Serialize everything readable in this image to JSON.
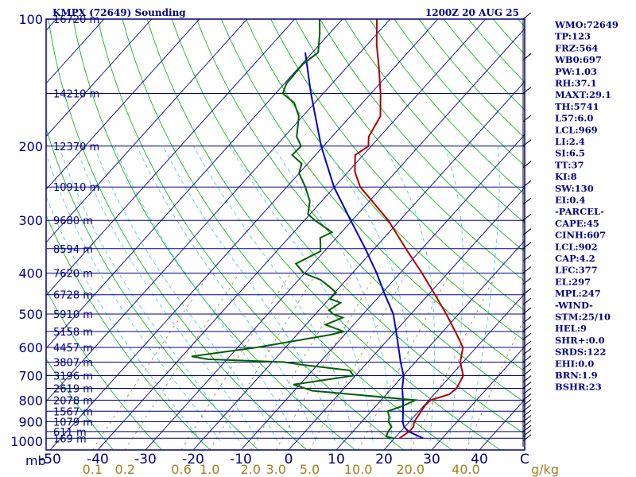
{
  "chart_data": {
    "type": "skew-t sounding",
    "title": "KMPX (72649) Sounding",
    "valid_time": "1200Z 20 AUG 25",
    "pressure_levels": [
      100,
      200,
      300,
      400,
      500,
      600,
      700,
      800,
      900,
      1000
    ],
    "pressure_unit_label": "mb",
    "temperature_ticks": [
      -50,
      -40,
      -30,
      -20,
      -10,
      0,
      10,
      20,
      30,
      40
    ],
    "temperature_unit_label": "C",
    "mixing_ratio_labels": [
      "0.1",
      "0.2",
      "0.6",
      "1.0",
      "2.0",
      "3.0",
      "5.0",
      "10.0",
      "20.0",
      "40.0"
    ],
    "mixing_ratio_unit_label": "g/kg",
    "heights": [
      {
        "p": 100,
        "label": "16720 m"
      },
      {
        "p": 150,
        "label": "14210 m"
      },
      {
        "p": 200,
        "label": "12370 m"
      },
      {
        "p": 250,
        "label": "10910 m"
      },
      {
        "p": 300,
        "label": "9680 m"
      },
      {
        "p": 350,
        "label": "8594 m"
      },
      {
        "p": 400,
        "label": "7620 m"
      },
      {
        "p": 450,
        "label": "6728 m"
      },
      {
        "p": 500,
        "label": "5910 m"
      },
      {
        "p": 550,
        "label": "5158 m"
      },
      {
        "p": 600,
        "label": "4457 m"
      },
      {
        "p": 650,
        "label": "3807 m"
      },
      {
        "p": 700,
        "label": "3196 m"
      },
      {
        "p": 750,
        "label": "2619 m"
      },
      {
        "p": 800,
        "label": "2078 m"
      },
      {
        "p": 850,
        "label": "1567 m"
      },
      {
        "p": 900,
        "label": "1079 m"
      },
      {
        "p": 950,
        "label": "611 m"
      },
      {
        "p": 985,
        "label": "169 m"
      }
    ],
    "temperature_profile": [
      [
        985,
        21.0
      ],
      [
        950,
        21.8
      ],
      [
        925,
        21.8
      ],
      [
        900,
        21.0
      ],
      [
        850,
        20.5
      ],
      [
        825,
        20.2
      ],
      [
        800,
        20.4
      ],
      [
        775,
        23.2
      ],
      [
        750,
        23.6
      ],
      [
        700,
        22.6
      ],
      [
        650,
        19.4
      ],
      [
        600,
        17.2
      ],
      [
        550,
        12.6
      ],
      [
        500,
        7.4
      ],
      [
        450,
        1.4
      ],
      [
        400,
        -5.4
      ],
      [
        350,
        -13.4
      ],
      [
        300,
        -22.4
      ],
      [
        250,
        -34.6
      ],
      [
        230,
        -38.6
      ],
      [
        210,
        -41.7
      ],
      [
        200,
        -40.6
      ],
      [
        190,
        -42.3
      ],
      [
        170,
        -43.7
      ],
      [
        150,
        -48.0
      ],
      [
        130,
        -53.3
      ],
      [
        115,
        -58.0
      ],
      [
        100,
        -62.8
      ]
    ],
    "dewpoint_profile": [
      [
        985,
        19.8
      ],
      [
        975,
        17.9
      ],
      [
        950,
        17.4
      ],
      [
        925,
        17.2
      ],
      [
        900,
        15.6
      ],
      [
        875,
        14.8
      ],
      [
        850,
        13.5
      ],
      [
        825,
        15.7
      ],
      [
        800,
        17.2
      ],
      [
        760,
        -6.2
      ],
      [
        735,
        -11.3
      ],
      [
        700,
        -0.4
      ],
      [
        680,
        -2.2
      ],
      [
        660,
        -13.0
      ],
      [
        650,
        -17.5
      ],
      [
        640,
        -34.0
      ],
      [
        630,
        -38.0
      ],
      [
        600,
        -26.0
      ],
      [
        560,
        -13.0
      ],
      [
        550,
        -10.8
      ],
      [
        530,
        -15.9
      ],
      [
        510,
        -13.6
      ],
      [
        500,
        -16.3
      ],
      [
        490,
        -17.9
      ],
      [
        470,
        -16.9
      ],
      [
        460,
        -19.9
      ],
      [
        445,
        -19.7
      ],
      [
        430,
        -22.4
      ],
      [
        415,
        -25.4
      ],
      [
        400,
        -30.2
      ],
      [
        380,
        -33.6
      ],
      [
        355,
        -30.8
      ],
      [
        340,
        -32.3
      ],
      [
        330,
        -33.4
      ],
      [
        320,
        -32.0
      ],
      [
        300,
        -37.8
      ],
      [
        290,
        -40.4
      ],
      [
        270,
        -42.5
      ],
      [
        250,
        -46.1
      ],
      [
        232,
        -50.0
      ],
      [
        220,
        -51.3
      ],
      [
        210,
        -54.9
      ],
      [
        200,
        -54.7
      ],
      [
        190,
        -57.4
      ],
      [
        170,
        -60.8
      ],
      [
        158,
        -64.3
      ],
      [
        150,
        -68.5
      ],
      [
        142,
        -69.6
      ],
      [
        128,
        -69.8
      ],
      [
        120,
        -68.8
      ],
      [
        108,
        -72.1
      ],
      [
        100,
        -74.8
      ]
    ],
    "parcel_profile": [
      [
        985,
        26.0
      ],
      [
        975,
        24.8
      ],
      [
        950,
        21.7
      ],
      [
        925,
        19.8
      ],
      [
        900,
        18.6
      ],
      [
        850,
        16.7
      ],
      [
        800,
        14.6
      ],
      [
        750,
        12.2
      ],
      [
        700,
        10.1
      ],
      [
        650,
        6.9
      ],
      [
        600,
        3.7
      ],
      [
        550,
        0.2
      ],
      [
        500,
        -3.7
      ],
      [
        450,
        -9.1
      ],
      [
        400,
        -14.9
      ],
      [
        350,
        -21.9
      ],
      [
        300,
        -30.3
      ],
      [
        250,
        -40.1
      ],
      [
        200,
        -50.5
      ],
      [
        150,
        -62.6
      ],
      [
        120,
        -71.5
      ]
    ],
    "indices": [
      "WMO:72649",
      "TP:123",
      "FRZ:564",
      "WB0:697",
      "PW:1.03",
      "RH:37.1",
      "MAXT:29.1",
      "TH:5741",
      "L57:6.0",
      "LCL:969",
      "LI:2.4",
      "SI:6.5",
      "TT:37",
      "KI:8",
      "SW:130",
      "EI:0.4",
      "-PARCEL-",
      "CAPE:45",
      "CINH:607",
      "LCL:902",
      "CAP:4.2",
      "LFC:377",
      "EL:297",
      "MPL:247",
      "-WIND-",
      "STM:25/10",
      "HEL:9",
      "SHR+:0.0",
      "SRDS:122",
      "EHI:0.0",
      "BRN:1.9",
      "BSHR:23"
    ],
    "colors": {
      "isobar": "#00008b",
      "isotherm": "#00008b",
      "dry_adiabat": "#00b000",
      "moist_adiabat": "#50c8f0",
      "mixing_ratio": "#a08020",
      "temperature": "#b00000",
      "dewpoint": "#006000",
      "parcel": "#0000c8",
      "label": "#000080",
      "wind": "#000000"
    }
  }
}
